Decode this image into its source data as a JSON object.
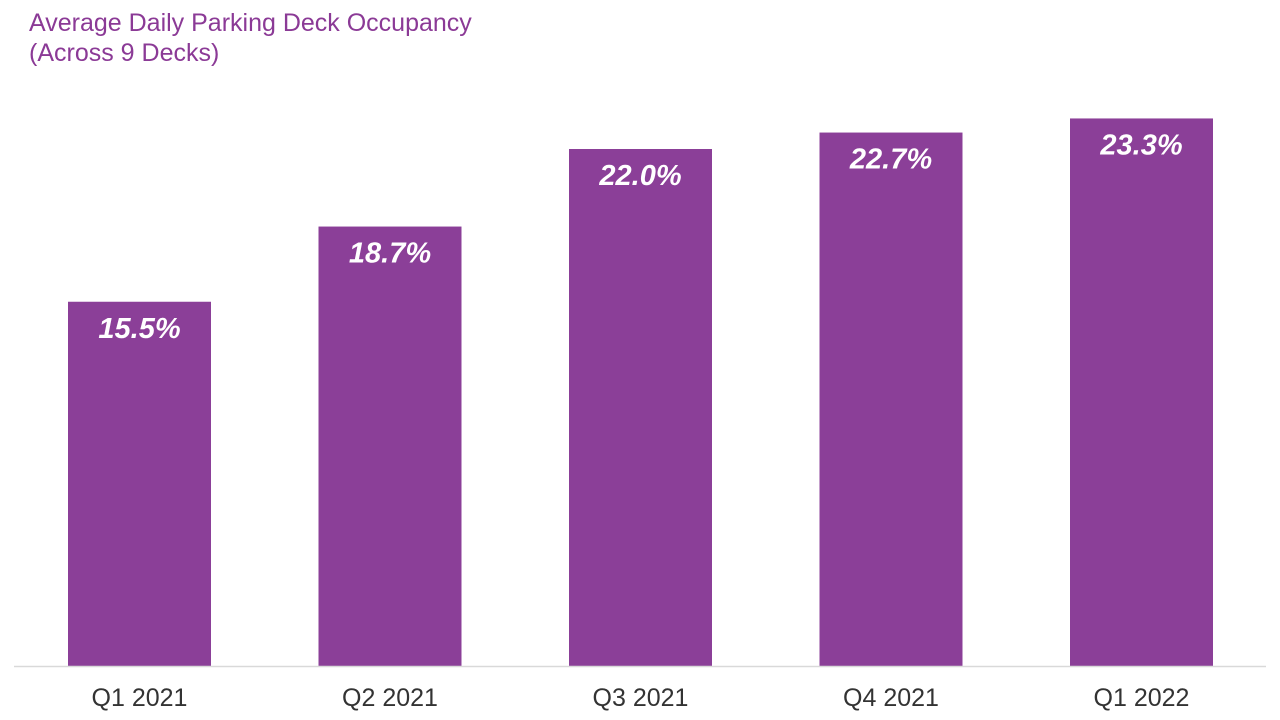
{
  "chart_data": {
    "type": "bar",
    "title": "Average Daily Parking Deck Occupancy",
    "subtitle": "(Across 9 Decks)",
    "categories": [
      "Q1 2021",
      "Q2 2021",
      "Q3 2021",
      "Q4 2021",
      "Q1 2022"
    ],
    "values": [
      15.5,
      18.7,
      22.0,
      22.7,
      23.3
    ],
    "data_labels": [
      "15.5%",
      "18.7%",
      "22.0%",
      "22.7%",
      "23.3%"
    ],
    "xlabel": "",
    "ylabel": "",
    "ylim": [
      0,
      25
    ],
    "grid": false,
    "legend": "none",
    "colors": {
      "bar": "#8B3F98",
      "title": "#8B3A96",
      "axis": "#D9D9D9",
      "label": "#FFFFFF",
      "tick": "#333333"
    }
  }
}
